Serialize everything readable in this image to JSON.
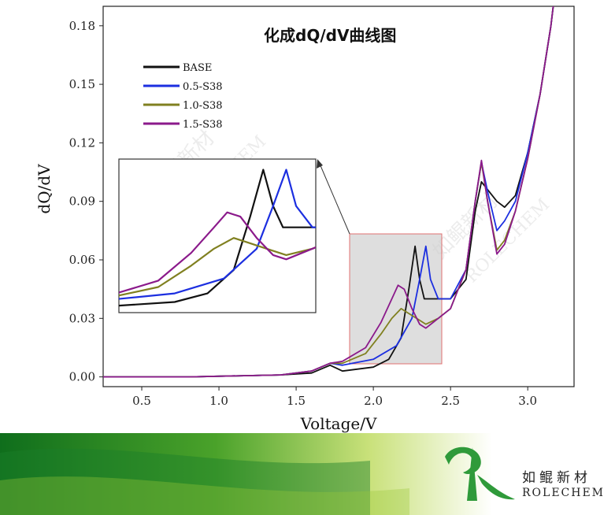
{
  "chart_data": {
    "type": "line",
    "title": "化成dQ/dV曲线图",
    "xlabel": "Voltage/V",
    "ylabel": "dQ/dV",
    "xlim": [
      0.25,
      3.3
    ],
    "ylim": [
      -0.005,
      0.19
    ],
    "xticks": [
      "0.5",
      "1.0",
      "1.5",
      "2.0",
      "2.5",
      "3.0"
    ],
    "yticks": [
      "0.00",
      "0.03",
      "0.06",
      "0.09",
      "0.12",
      "0.15",
      "0.18"
    ],
    "legend_position": "top-left",
    "inset": {
      "description_shown": false,
      "x_range": [
        1.83,
        2.43
      ],
      "y_range": [
        0.0,
        0.072
      ]
    },
    "series": [
      {
        "name": "BASE",
        "color": "#111111",
        "points": [
          [
            0.25,
            0.0
          ],
          [
            0.8,
            0.0
          ],
          [
            1.4,
            0.001
          ],
          [
            1.6,
            0.002
          ],
          [
            1.72,
            0.006
          ],
          [
            1.8,
            0.003
          ],
          [
            2.0,
            0.005
          ],
          [
            2.1,
            0.009
          ],
          [
            2.18,
            0.02
          ],
          [
            2.23,
            0.045
          ],
          [
            2.27,
            0.067
          ],
          [
            2.3,
            0.05
          ],
          [
            2.33,
            0.04
          ],
          [
            2.4,
            0.04
          ],
          [
            2.5,
            0.04
          ],
          [
            2.6,
            0.05
          ],
          [
            2.66,
            0.085
          ],
          [
            2.7,
            0.1
          ],
          [
            2.75,
            0.095
          ],
          [
            2.8,
            0.09
          ],
          [
            2.85,
            0.087
          ],
          [
            2.92,
            0.093
          ],
          [
            3.0,
            0.115
          ],
          [
            3.08,
            0.145
          ],
          [
            3.15,
            0.18
          ],
          [
            3.18,
            0.2
          ]
        ]
      },
      {
        "name": "0.5-S38",
        "color": "#1c2fe0",
        "points": [
          [
            0.25,
            0.0
          ],
          [
            0.8,
            0.0
          ],
          [
            1.4,
            0.001
          ],
          [
            1.6,
            0.003
          ],
          [
            1.72,
            0.007
          ],
          [
            1.8,
            0.006
          ],
          [
            2.0,
            0.009
          ],
          [
            2.15,
            0.016
          ],
          [
            2.25,
            0.03
          ],
          [
            2.3,
            0.05
          ],
          [
            2.34,
            0.067
          ],
          [
            2.37,
            0.05
          ],
          [
            2.42,
            0.04
          ],
          [
            2.5,
            0.04
          ],
          [
            2.6,
            0.055
          ],
          [
            2.66,
            0.09
          ],
          [
            2.7,
            0.11
          ],
          [
            2.74,
            0.095
          ],
          [
            2.8,
            0.075
          ],
          [
            2.85,
            0.08
          ],
          [
            2.92,
            0.09
          ],
          [
            3.0,
            0.115
          ],
          [
            3.08,
            0.145
          ],
          [
            3.15,
            0.18
          ],
          [
            3.18,
            0.2
          ]
        ]
      },
      {
        "name": "1.0-S38",
        "color": "#808020",
        "points": [
          [
            0.25,
            0.0
          ],
          [
            0.8,
            0.0
          ],
          [
            1.4,
            0.001
          ],
          [
            1.6,
            0.003
          ],
          [
            1.72,
            0.007
          ],
          [
            1.8,
            0.007
          ],
          [
            1.95,
            0.012
          ],
          [
            2.05,
            0.022
          ],
          [
            2.12,
            0.03
          ],
          [
            2.18,
            0.035
          ],
          [
            2.22,
            0.033
          ],
          [
            2.28,
            0.03
          ],
          [
            2.34,
            0.027
          ],
          [
            2.42,
            0.03
          ],
          [
            2.5,
            0.035
          ],
          [
            2.6,
            0.055
          ],
          [
            2.66,
            0.09
          ],
          [
            2.7,
            0.11
          ],
          [
            2.74,
            0.09
          ],
          [
            2.8,
            0.065
          ],
          [
            2.85,
            0.07
          ],
          [
            2.92,
            0.085
          ],
          [
            3.0,
            0.112
          ],
          [
            3.08,
            0.145
          ],
          [
            3.15,
            0.18
          ],
          [
            3.18,
            0.2
          ]
        ]
      },
      {
        "name": "1.5-S38",
        "color": "#8b1a8b",
        "points": [
          [
            0.25,
            0.0
          ],
          [
            0.8,
            0.0
          ],
          [
            1.4,
            0.001
          ],
          [
            1.6,
            0.003
          ],
          [
            1.72,
            0.007
          ],
          [
            1.8,
            0.008
          ],
          [
            1.95,
            0.015
          ],
          [
            2.05,
            0.028
          ],
          [
            2.12,
            0.04
          ],
          [
            2.16,
            0.047
          ],
          [
            2.2,
            0.045
          ],
          [
            2.25,
            0.035
          ],
          [
            2.3,
            0.027
          ],
          [
            2.34,
            0.025
          ],
          [
            2.42,
            0.03
          ],
          [
            2.5,
            0.035
          ],
          [
            2.6,
            0.055
          ],
          [
            2.66,
            0.09
          ],
          [
            2.7,
            0.111
          ],
          [
            2.74,
            0.09
          ],
          [
            2.8,
            0.063
          ],
          [
            2.85,
            0.068
          ],
          [
            2.92,
            0.085
          ],
          [
            3.0,
            0.112
          ],
          [
            3.08,
            0.145
          ],
          [
            3.15,
            0.18
          ],
          [
            3.18,
            0.2
          ]
        ]
      }
    ]
  },
  "watermark": {
    "cn": "如鲲新材",
    "en": "ROLECHEM"
  },
  "brand": {
    "cn": "如鲲新材",
    "en": "ROLECHEM",
    "colors": {
      "green": "#2f9a3a",
      "light_green": "#b8d64a"
    }
  }
}
